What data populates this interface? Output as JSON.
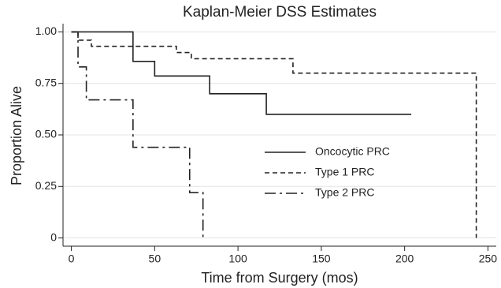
{
  "chart_data": {
    "type": "step",
    "title": "Kaplan-Meier DSS Estimates",
    "x_label": "Time from Surgery (mos)",
    "y_label": "Proportion Alive",
    "xlim": [
      -5,
      255
    ],
    "ylim": [
      -0.04,
      1.04
    ],
    "xticks": [
      0,
      50,
      100,
      150,
      200,
      250
    ],
    "yticks": [
      {
        "value": 1,
        "label": "1.00"
      },
      0.75,
      {
        "value": 0.5,
        "label": "0.50"
      },
      0.25,
      0
    ],
    "grid": true,
    "series": [
      {
        "name": "Oncocytic PRC",
        "color": "#222222",
        "linestyle": "solid",
        "x": [
          0,
          37,
          50,
          83,
          117,
          204
        ],
        "values": [
          1,
          0.857,
          0.786,
          0.7,
          0.6,
          0.6
        ]
      },
      {
        "name": "Type 1 PRC",
        "color": "#222222",
        "linestyle": "dashed",
        "x": [
          0,
          4,
          12,
          63,
          72,
          133,
          243
        ],
        "values": [
          1,
          0.96,
          0.93,
          0.9,
          0.87,
          0.8,
          0
        ]
      },
      {
        "name": "Type 2 PRC",
        "color": "#222222",
        "linestyle": "dashdot",
        "x": [
          0,
          4,
          9,
          37,
          71,
          79
        ],
        "values": [
          1,
          0.83,
          0.67,
          0.44,
          0.22,
          0
        ]
      }
    ]
  }
}
